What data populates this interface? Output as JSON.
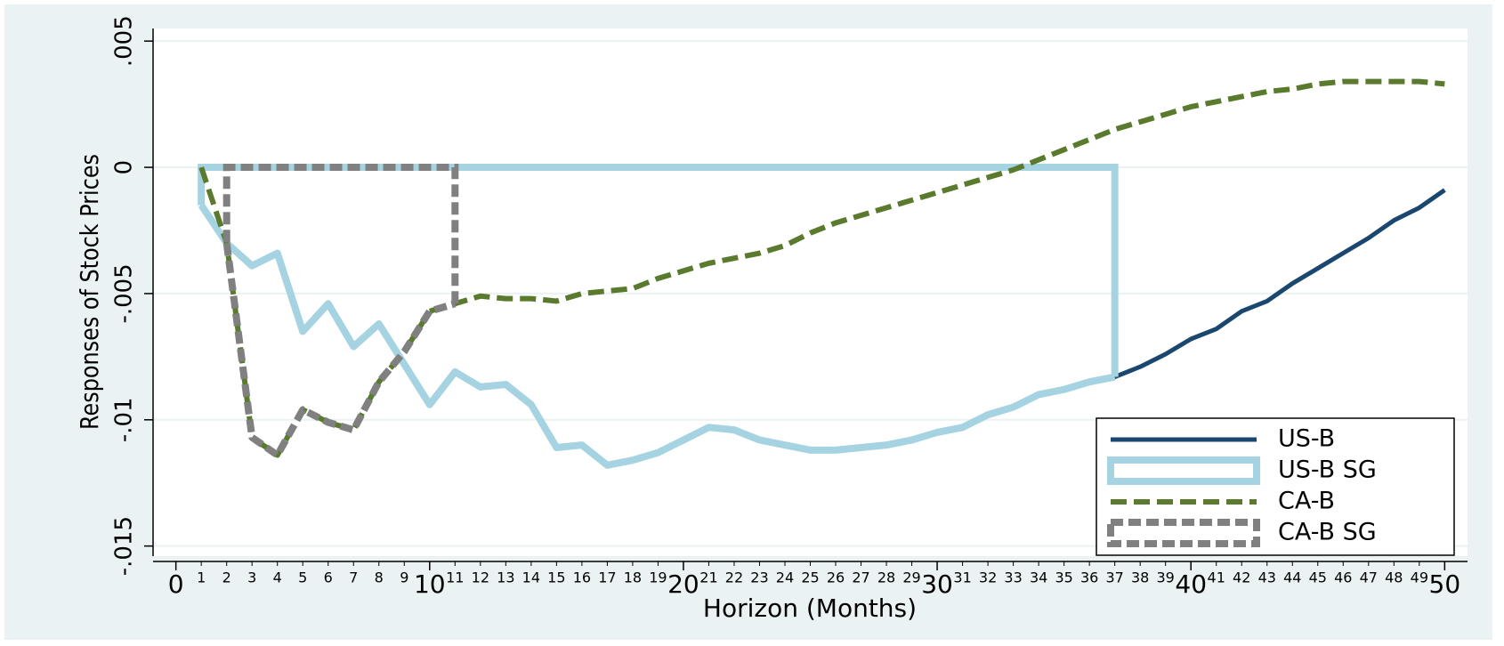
{
  "chart_data": {
    "type": "line",
    "y_label": "Responses of Stock Prices",
    "x_label": "Horizon (Months)",
    "xlim": [
      -0.9,
      50.9
    ],
    "ylim": [
      -0.0154,
      0.0055
    ],
    "xticks": [
      0,
      10,
      20,
      30,
      40,
      50
    ],
    "xticks_minor": [
      1,
      2,
      3,
      4,
      5,
      6,
      7,
      8,
      9,
      11,
      12,
      13,
      14,
      15,
      16,
      17,
      18,
      19,
      21,
      22,
      23,
      24,
      25,
      26,
      27,
      28,
      29,
      31,
      32,
      33,
      34,
      35,
      36,
      37,
      38,
      39,
      41,
      42,
      43,
      44,
      45,
      46,
      47,
      48,
      49
    ],
    "yticks": [
      {
        "value": 0.005,
        "label": ".005"
      },
      {
        "value": 0,
        "label": "0"
      },
      {
        "value": -0.005,
        "label": "-.005"
      },
      {
        "value": -0.01,
        "label": "-.01"
      },
      {
        "value": -0.015,
        "label": "-.015"
      }
    ],
    "grid": true,
    "legend_position": "lower right",
    "series": [
      {
        "name": "US-B",
        "color": "#1a476f",
        "dashed": false,
        "area": false,
        "x": [
          1,
          2,
          3,
          4,
          5,
          6,
          7,
          8,
          9,
          10,
          11,
          12,
          13,
          14,
          15,
          16,
          17,
          18,
          19,
          20,
          21,
          22,
          23,
          24,
          25,
          26,
          27,
          28,
          29,
          30,
          31,
          32,
          33,
          34,
          35,
          36,
          37,
          38,
          39,
          40,
          41,
          42,
          43,
          44,
          45,
          46,
          47,
          48,
          49,
          50
        ],
        "values": [
          -0.0015,
          -0.003,
          -0.0039,
          -0.0034,
          -0.0065,
          -0.0054,
          -0.0071,
          -0.0062,
          -0.0078,
          -0.0094,
          -0.0081,
          -0.0087,
          -0.0086,
          -0.0094,
          -0.0111,
          -0.011,
          -0.0118,
          -0.0116,
          -0.0113,
          -0.0108,
          -0.0103,
          -0.0104,
          -0.0108,
          -0.011,
          -0.0112,
          -0.0112,
          -0.0111,
          -0.011,
          -0.0108,
          -0.0105,
          -0.0103,
          -0.0098,
          -0.0095,
          -0.009,
          -0.0088,
          -0.0085,
          -0.0083,
          -0.0079,
          -0.0074,
          -0.0068,
          -0.0064,
          -0.0057,
          -0.0053,
          -0.0046,
          -0.004,
          -0.0034,
          -0.0028,
          -0.0021,
          -0.0016,
          -0.0009
        ]
      },
      {
        "name": "US-B SG",
        "color": "#a5d3e2",
        "dashed": false,
        "area": true,
        "x": [
          1,
          2,
          3,
          4,
          5,
          6,
          7,
          8,
          9,
          10,
          11,
          12,
          13,
          14,
          15,
          16,
          17,
          18,
          19,
          20,
          21,
          22,
          23,
          24,
          25,
          26,
          27,
          28,
          29,
          30,
          31,
          32,
          33,
          34,
          35,
          36,
          37
        ],
        "values": [
          -0.0015,
          -0.003,
          -0.0039,
          -0.0034,
          -0.0065,
          -0.0054,
          -0.0071,
          -0.0062,
          -0.0078,
          -0.0094,
          -0.0081,
          -0.0087,
          -0.0086,
          -0.0094,
          -0.0111,
          -0.011,
          -0.0118,
          -0.0116,
          -0.0113,
          -0.0108,
          -0.0103,
          -0.0104,
          -0.0108,
          -0.011,
          -0.0112,
          -0.0112,
          -0.0111,
          -0.011,
          -0.0108,
          -0.0105,
          -0.0103,
          -0.0098,
          -0.0095,
          -0.009,
          -0.0088,
          -0.0085,
          -0.0083
        ]
      },
      {
        "name": "CA-B",
        "color": "#5a7a2e",
        "dashed": true,
        "area": false,
        "x": [
          1,
          2,
          3,
          4,
          5,
          6,
          7,
          8,
          9,
          10,
          11,
          12,
          13,
          14,
          15,
          16,
          17,
          18,
          19,
          20,
          21,
          22,
          23,
          24,
          25,
          26,
          27,
          28,
          29,
          30,
          31,
          32,
          33,
          34,
          35,
          36,
          37,
          38,
          39,
          40,
          41,
          42,
          43,
          44,
          45,
          46,
          47,
          48,
          49,
          50
        ],
        "values": [
          0,
          -0.003,
          -0.0107,
          -0.0114,
          -0.0096,
          -0.0101,
          -0.0104,
          -0.0085,
          -0.0073,
          -0.0057,
          -0.0054,
          -0.0051,
          -0.0052,
          -0.0052,
          -0.0053,
          -0.005,
          -0.0049,
          -0.0048,
          -0.0044,
          -0.0041,
          -0.0038,
          -0.0036,
          -0.0034,
          -0.0031,
          -0.0026,
          -0.0022,
          -0.0019,
          -0.0016,
          -0.0013,
          -0.001,
          -0.0007,
          -0.0004,
          -0.0001,
          0.0003,
          0.0007,
          0.0011,
          0.0015,
          0.0018,
          0.0021,
          0.0024,
          0.0026,
          0.0028,
          0.003,
          0.0031,
          0.0033,
          0.0034,
          0.0034,
          0.0034,
          0.0034,
          0.0033
        ]
      },
      {
        "name": "CA-B SG",
        "color": "#808080",
        "dashed": true,
        "area": true,
        "x": [
          2,
          3,
          4,
          5,
          6,
          7,
          8,
          9,
          10,
          11
        ],
        "values": [
          -0.003,
          -0.0107,
          -0.0114,
          -0.0096,
          -0.0101,
          -0.0104,
          -0.0085,
          -0.0073,
          -0.0057,
          -0.0054
        ]
      }
    ]
  }
}
